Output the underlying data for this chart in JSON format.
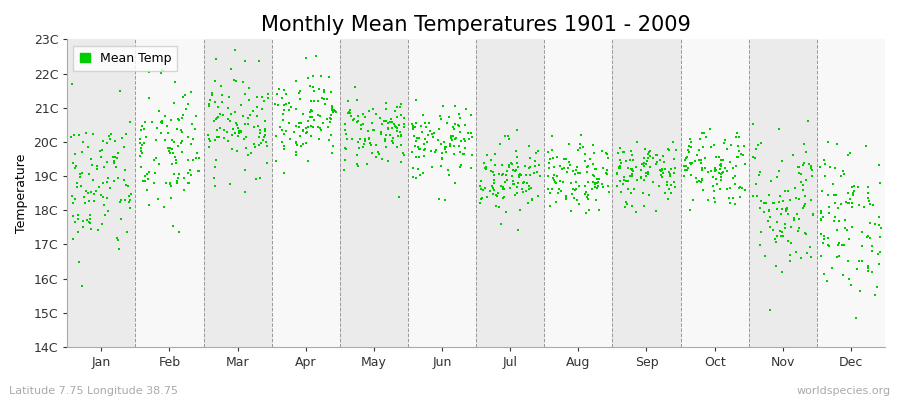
{
  "title": "Monthly Mean Temperatures 1901 - 2009",
  "ylabel": "Temperature",
  "xlabel_lat_lon": "Latitude 7.75 Longitude 38.75",
  "watermark": "worldspecies.org",
  "legend_label": "Mean Temp",
  "marker_color": "#00CC00",
  "ylim": [
    14,
    23
  ],
  "ytick_labels": [
    "14C",
    "15C",
    "16C",
    "17C",
    "18C",
    "19C",
    "20C",
    "21C",
    "22C",
    "23C"
  ],
  "ytick_values": [
    14,
    15,
    16,
    17,
    18,
    19,
    20,
    21,
    22,
    23
  ],
  "months": [
    "Jan",
    "Feb",
    "Mar",
    "Apr",
    "May",
    "Jun",
    "Jul",
    "Aug",
    "Sep",
    "Oct",
    "Nov",
    "Dec"
  ],
  "bg_colors": [
    "#ebebeb",
    "#f8f8f8"
  ],
  "title_fontsize": 15,
  "axis_label_fontsize": 9,
  "tick_fontsize": 9,
  "random_seed": 42,
  "n_years": 109,
  "monthly_mean_temps": [
    18.7,
    19.7,
    20.6,
    20.8,
    20.3,
    19.9,
    19.0,
    18.9,
    19.1,
    19.3,
    18.2,
    17.7
  ],
  "monthly_std_temps": [
    1.1,
    1.1,
    0.75,
    0.65,
    0.55,
    0.55,
    0.55,
    0.5,
    0.5,
    0.6,
    1.1,
    1.1
  ]
}
